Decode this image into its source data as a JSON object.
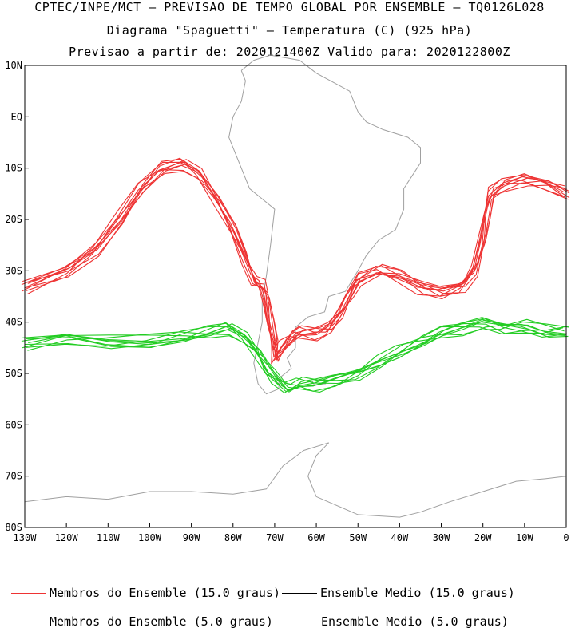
{
  "header": {
    "line1": "CPTEC/INPE/MCT — PREVISAO DE TEMPO GLOBAL POR ENSEMBLE — TQ0126L028",
    "line2": "Diagrama \"Spaguetti\" — Temperatura (C) (925 hPa)",
    "line3": "Previsao a partir de: 2020121400Z  Valido para: 2020122800Z"
  },
  "map": {
    "extent": {
      "lon": [
        -130,
        0
      ],
      "lat": [
        -80,
        10
      ]
    },
    "lat_ticks": [
      {
        "lat": 10,
        "label": "10N"
      },
      {
        "lat": 0,
        "label": "EQ"
      },
      {
        "lat": -10,
        "label": "10S"
      },
      {
        "lat": -20,
        "label": "20S"
      },
      {
        "lat": -30,
        "label": "30S"
      },
      {
        "lat": -40,
        "label": "40S"
      },
      {
        "lat": -50,
        "label": "50S"
      },
      {
        "lat": -60,
        "label": "60S"
      },
      {
        "lat": -70,
        "label": "70S"
      },
      {
        "lat": -80,
        "label": "80S"
      }
    ],
    "lon_ticks": [
      {
        "lon": -130,
        "label": "130W"
      },
      {
        "lon": -120,
        "label": "120W"
      },
      {
        "lon": -110,
        "label": "110W"
      },
      {
        "lon": -100,
        "label": "100W"
      },
      {
        "lon": -90,
        "label": "90W"
      },
      {
        "lon": -80,
        "label": "80W"
      },
      {
        "lon": -70,
        "label": "70W"
      },
      {
        "lon": -60,
        "label": "60W"
      },
      {
        "lon": -50,
        "label": "50W"
      },
      {
        "lon": -40,
        "label": "40W"
      },
      {
        "lon": -30,
        "label": "30W"
      },
      {
        "lon": -20,
        "label": "20W"
      },
      {
        "lon": -10,
        "label": "10W"
      },
      {
        "lon": 0,
        "label": "0"
      }
    ],
    "colors": {
      "warm": "#ee3333",
      "cold": "#22cc22",
      "land": "#a0a0a0"
    }
  },
  "legend": {
    "items": [
      {
        "label": "Membros do Ensemble (15.0 graus)",
        "color": "#ee3333"
      },
      {
        "label": "Ensemble Medio (15.0 graus)",
        "color": "#000000"
      },
      {
        "label": "Membros do Ensemble (5.0 graus)",
        "color": "#22cc22"
      },
      {
        "label": "Ensemble Medio (5.0 graus)",
        "color": "#aa00aa"
      }
    ]
  },
  "chart_data": {
    "type": "line",
    "title": "Diagrama \"Spaguetti\" — Temperatura (C) (925 hPa)",
    "xlabel": "",
    "ylabel": "",
    "xlim": [
      -130,
      0
    ],
    "ylim": [
      -80,
      10
    ],
    "series": [
      {
        "name": "Membros do Ensemble (15.0 graus)",
        "color": "#ee3333",
        "x": [
          -130,
          -120,
          -113,
          -107,
          -102,
          -97,
          -92,
          -88,
          -84,
          -80,
          -77,
          -75,
          -73,
          -72,
          -71,
          -70,
          -70,
          -68,
          -66,
          -64,
          -60,
          -57,
          -54,
          -52,
          -50,
          -45,
          -40,
          -35,
          -30,
          -25,
          -22,
          -20,
          -19,
          -18,
          -15,
          -10,
          -5,
          0
        ],
        "y": [
          -33,
          -30,
          -26,
          -20,
          -14,
          -10,
          -9,
          -11,
          -16,
          -22,
          -28,
          -32,
          -33,
          -35,
          -40,
          -44,
          -47,
          -45,
          -43,
          -42,
          -42,
          -41,
          -38,
          -35,
          -32,
          -30,
          -31,
          -33,
          -34,
          -33,
          -30,
          -24,
          -19,
          -15,
          -13,
          -12,
          -13,
          -15
        ]
      },
      {
        "name": "Membros do Ensemble (5.0 graus)",
        "color": "#22cc22",
        "x": [
          -130,
          -120,
          -110,
          -100,
          -92,
          -86,
          -81,
          -77,
          -74,
          -72,
          -70,
          -67,
          -64,
          -60,
          -55,
          -50,
          -45,
          -40,
          -35,
          -30,
          -25,
          -20,
          -15,
          -10,
          -5,
          0
        ],
        "y": [
          -44,
          -43,
          -44,
          -44,
          -43,
          -42,
          -41,
          -43,
          -46,
          -49,
          -51,
          -53,
          -52,
          -52,
          -51,
          -50,
          -48,
          -46,
          -44,
          -42,
          -41,
          -40,
          -41,
          -41,
          -42,
          -42
        ]
      }
    ]
  }
}
